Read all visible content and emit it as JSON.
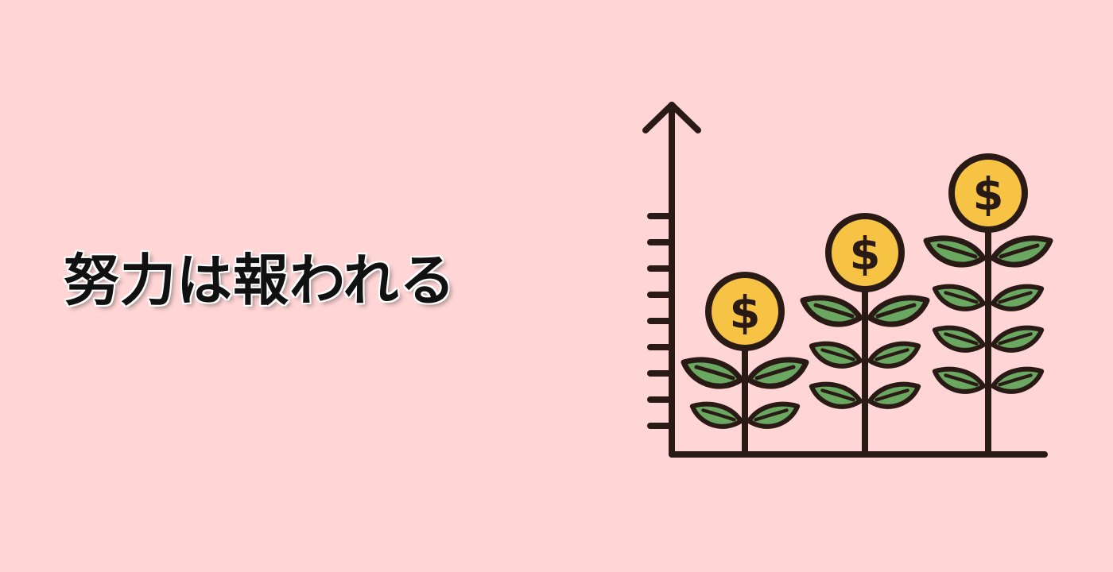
{
  "headline": "努力は報われる",
  "illustration": {
    "icon": "money-plant-growth-chart-icon",
    "coin_symbol": "$",
    "colors": {
      "background": "#ffd5d5",
      "outline": "#2a1a16",
      "coin": "#f6c344",
      "leaf": "#6aa861"
    }
  }
}
